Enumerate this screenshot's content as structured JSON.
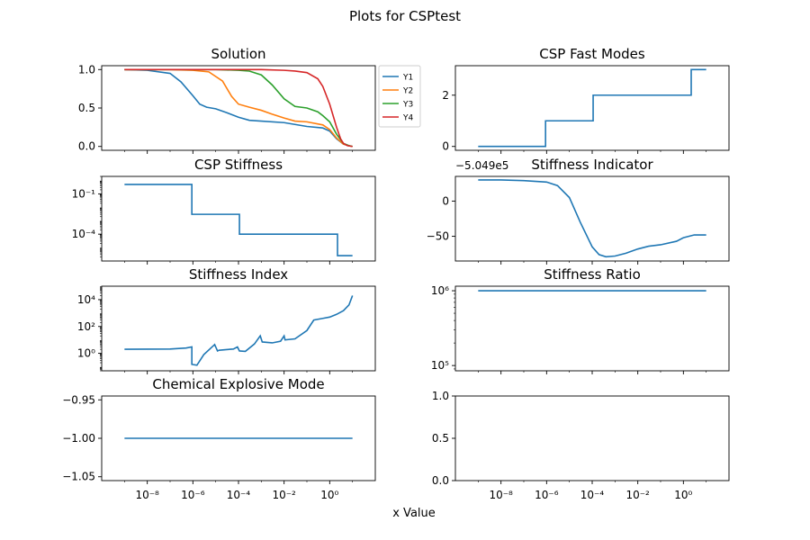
{
  "figure": {
    "suptitle": "Plots for CSPtest",
    "xlabel": "x Value"
  },
  "chart_data": [
    {
      "id": "solution",
      "type": "line",
      "title": "Solution",
      "xscale": "log",
      "xlim": [
        1e-10,
        100
      ],
      "ylim": [
        -0.05,
        1.05
      ],
      "yticks": [
        0.0,
        0.5,
        1.0
      ],
      "ytick_labels": [
        "0.0",
        "0.5",
        "1.0"
      ],
      "legend": "outside-right",
      "series": [
        {
          "name": "Y1",
          "color": "#1f77b4",
          "x": [
            1e-09,
            1e-08,
            1e-07,
            3e-07,
            1e-06,
            2e-06,
            4e-06,
            1e-05,
            3e-05,
            0.0001,
            0.0003,
            0.001,
            0.01,
            0.1,
            0.5,
            1,
            2,
            4,
            7,
            10
          ],
          "y": [
            1.0,
            0.99,
            0.95,
            0.84,
            0.66,
            0.55,
            0.51,
            0.49,
            0.44,
            0.38,
            0.34,
            0.33,
            0.31,
            0.26,
            0.24,
            0.2,
            0.1,
            0.03,
            0.01,
            0.0
          ]
        },
        {
          "name": "Y2",
          "color": "#ff7f0e",
          "x": [
            1e-09,
            1e-07,
            1e-06,
            5e-06,
            2e-05,
            5e-05,
            0.0001,
            0.0003,
            0.001,
            0.003,
            0.01,
            0.03,
            0.1,
            0.5,
            1,
            2,
            4,
            7,
            10
          ],
          "y": [
            1.0,
            1.0,
            0.99,
            0.97,
            0.85,
            0.65,
            0.55,
            0.51,
            0.47,
            0.42,
            0.37,
            0.33,
            0.32,
            0.28,
            0.22,
            0.11,
            0.03,
            0.01,
            0.0
          ]
        },
        {
          "name": "Y3",
          "color": "#2ca02c",
          "x": [
            1e-09,
            1e-05,
            0.0001,
            0.0003,
            0.001,
            0.003,
            0.01,
            0.03,
            0.1,
            0.3,
            0.5,
            1,
            2,
            4,
            7,
            10
          ],
          "y": [
            1.0,
            1.0,
            0.99,
            0.98,
            0.93,
            0.8,
            0.62,
            0.52,
            0.5,
            0.45,
            0.4,
            0.32,
            0.16,
            0.04,
            0.01,
            0.0
          ]
        },
        {
          "name": "Y4",
          "color": "#d62728",
          "x": [
            1e-09,
            0.001,
            0.01,
            0.03,
            0.1,
            0.3,
            0.5,
            1,
            2,
            3,
            4,
            6,
            10
          ],
          "y": [
            1.0,
            1.0,
            0.99,
            0.98,
            0.96,
            0.88,
            0.78,
            0.55,
            0.25,
            0.1,
            0.04,
            0.01,
            0.0
          ]
        }
      ]
    },
    {
      "id": "fast-modes",
      "type": "line",
      "title": "CSP Fast Modes",
      "xscale": "log",
      "xlim": [
        1e-10,
        100
      ],
      "ylim": [
        -0.15,
        3.15
      ],
      "yticks": [
        0,
        2
      ],
      "ytick_labels": [
        "0",
        "2"
      ],
      "series": [
        {
          "name": "",
          "color": "#1f77b4",
          "x": [
            1e-09,
            9e-07,
            9e-07,
            0.00011,
            0.00011,
            2.2,
            2.2,
            10
          ],
          "y": [
            0,
            0,
            1,
            1,
            2,
            2,
            3,
            3
          ]
        }
      ]
    },
    {
      "id": "csp-stiffness",
      "type": "line",
      "title": "CSP Stiffness",
      "xscale": "log",
      "yscale": "log",
      "xlim": [
        1e-10,
        100
      ],
      "ylim": [
        1e-06,
        2
      ],
      "yticks": [
        0.0001,
        0.1
      ],
      "ytick_labels": [
        "10⁻⁴",
        "10⁻¹"
      ],
      "series": [
        {
          "name": "",
          "color": "#1f77b4",
          "x": [
            1e-09,
            9e-07,
            9e-07,
            0.00011,
            0.00011,
            2.2,
            2.2,
            10
          ],
          "y": [
            0.5,
            0.5,
            0.003,
            0.003,
            0.0001,
            0.0001,
            2.5e-06,
            2.5e-06
          ]
        }
      ]
    },
    {
      "id": "stiffness-indicator",
      "type": "line",
      "title": "Stiffness Indicator",
      "offset_text": "−5.049e5",
      "xscale": "log",
      "xlim": [
        1e-10,
        100
      ],
      "ylim": [
        -85,
        35
      ],
      "yticks": [
        0,
        -50
      ],
      "ytick_labels": [
        "0",
        "−50"
      ],
      "series": [
        {
          "name": "",
          "color": "#1f77b4",
          "x": [
            1e-09,
            1e-08,
            1e-07,
            1e-06,
            3e-06,
            1e-05,
            3e-05,
            0.0001,
            0.0002,
            0.0004,
            0.001,
            0.003,
            0.01,
            0.03,
            0.1,
            0.5,
            1,
            3,
            10
          ],
          "y": [
            30,
            30,
            29,
            27,
            22,
            5,
            -30,
            -65,
            -76,
            -79,
            -78,
            -74,
            -68,
            -64,
            -62,
            -57,
            -52,
            -48,
            -48
          ]
        }
      ]
    },
    {
      "id": "stiffness-index",
      "type": "line",
      "title": "Stiffness Index",
      "xscale": "log",
      "yscale": "log",
      "xlim": [
        1e-10,
        100
      ],
      "ylim": [
        0.05,
        100000.0
      ],
      "yticks": [
        1,
        100,
        10000
      ],
      "ytick_labels": [
        "10⁰",
        "10²",
        "10⁴"
      ],
      "series": [
        {
          "name": "",
          "color": "#1f77b4",
          "x": [
            1e-09,
            1e-07,
            5e-07,
            9e-07,
            9e-07,
            1.5e-06,
            3e-06,
            9e-06,
            1.2e-05,
            1.4e-05,
            3e-05,
            6e-05,
            9e-05,
            0.00011,
            0.0002,
            0.0005,
            0.0009,
            0.0011,
            0.003,
            0.007,
            0.01,
            0.011,
            0.03,
            0.1,
            0.2,
            0.5,
            1,
            2,
            4,
            7,
            10
          ],
          "y": [
            2,
            2.1,
            2.5,
            3,
            0.15,
            0.13,
            0.8,
            4.5,
            1.5,
            1.7,
            1.9,
            2.1,
            3,
            1.5,
            1.4,
            5,
            20,
            7,
            6,
            8,
            20,
            10,
            12,
            50,
            300,
            400,
            500,
            800,
            1500,
            4000,
            20000
          ]
        }
      ]
    },
    {
      "id": "stiffness-ratio",
      "type": "line",
      "title": "Stiffness Ratio",
      "xscale": "log",
      "yscale": "log",
      "xlim": [
        1e-10,
        100
      ],
      "ylim": [
        85000,
        1150000
      ],
      "yticks": [
        100000,
        1000000
      ],
      "ytick_labels": [
        "10⁵",
        "10⁶"
      ],
      "series": [
        {
          "name": "",
          "color": "#1f77b4",
          "x": [
            1e-09,
            10
          ],
          "y": [
            1000000,
            1000000
          ]
        }
      ]
    },
    {
      "id": "explosive-mode",
      "type": "line",
      "title": "Chemical Explosive Mode",
      "xscale": "log",
      "xlim": [
        1e-10,
        100
      ],
      "ylim": [
        -1.055,
        -0.945
      ],
      "yticks": [
        -0.95,
        -1.0,
        -1.05
      ],
      "ytick_labels": [
        "−0.95",
        "−1.00",
        "−1.05"
      ],
      "xticks": [
        1e-08,
        1e-06,
        0.0001,
        0.01,
        1
      ],
      "xtick_labels": [
        "10⁻⁸",
        "10⁻⁶",
        "10⁻⁴",
        "10⁻²",
        "10⁰"
      ],
      "series": [
        {
          "name": "",
          "color": "#1f77b4",
          "x": [
            1e-09,
            10
          ],
          "y": [
            -1.0,
            -1.0
          ]
        }
      ]
    },
    {
      "id": "empty",
      "type": "line",
      "title": "",
      "xscale": "log",
      "xlim": [
        1e-10,
        100
      ],
      "ylim": [
        0,
        1
      ],
      "yticks": [
        0.0,
        0.5,
        1.0
      ],
      "ytick_labels": [
        "0.0",
        "0.5",
        "1.0"
      ],
      "xticks": [
        1e-08,
        1e-06,
        0.0001,
        0.01,
        1
      ],
      "xtick_labels": [
        "10⁻⁸",
        "10⁻⁶",
        "10⁻⁴",
        "10⁻²",
        "10⁰"
      ],
      "series": []
    }
  ]
}
